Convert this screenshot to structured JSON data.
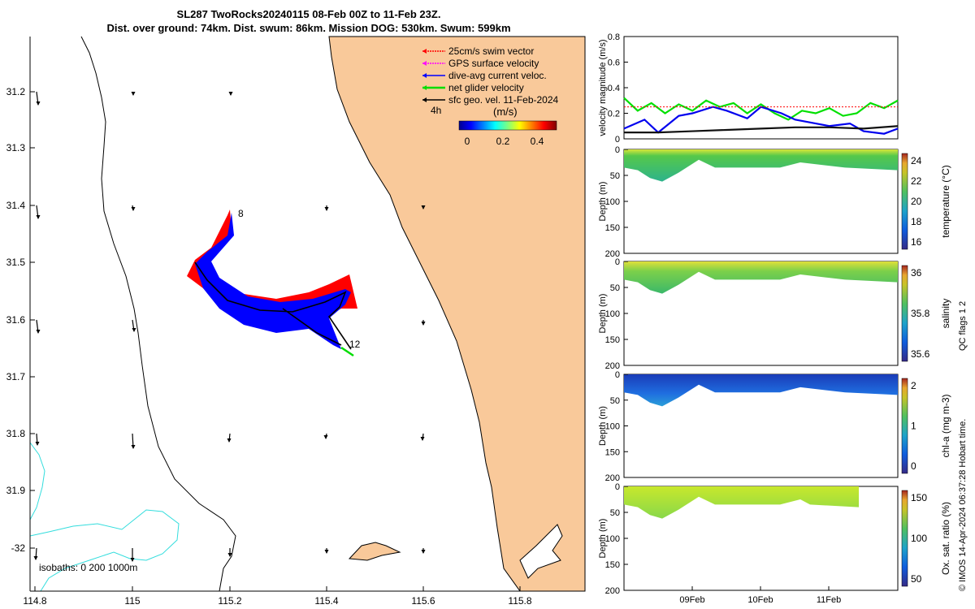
{
  "title_line1": "SL287 TwoRocks20240115 08-Feb 00Z to 11-Feb 23Z.",
  "title_line2": "Dist. over ground: 74km. Dist. swum: 86km. Mission DOG: 530km. Swum: 599km",
  "map": {
    "xticks": [
      "114.8",
      "115",
      "115.2",
      "115.4",
      "115.6",
      "115.8"
    ],
    "yticks": [
      "31.2",
      "31.3",
      "31.4",
      "31.5",
      "31.6",
      "31.7",
      "31.8",
      "31.9",
      "-32"
    ],
    "legend": [
      {
        "label": "25cm/s swim vector",
        "color": "#ff0000"
      },
      {
        "label": "GPS surface velocity",
        "color": "#ff00ff"
      },
      {
        "label": "dive-avg current veloc.",
        "color": "#0000ff"
      },
      {
        "label": "net glider velocity",
        "color": "#00dd00"
      },
      {
        "label": "sfc geo. vel. 11-Feb-2024",
        "color": "#000000"
      }
    ],
    "time_label": "4h",
    "colorbar_title": "(m/s)",
    "colorbar_ticks": [
      "0",
      "0.2",
      "0.4"
    ],
    "isobaths_label": "isobaths: 0   200  1000m",
    "start_label": "8",
    "end_label": "12",
    "land_color": "#f9c99a",
    "isobath_color": "#33dddd"
  },
  "chart_data": [
    {
      "type": "line",
      "ylabel": "velocity magnitude (m/s)",
      "ylim": [
        0,
        0.8
      ],
      "yticks": [
        "0",
        "0.2",
        "0.4",
        "0.6",
        "0.8"
      ],
      "xlim": [
        0,
        4
      ],
      "series": [
        {
          "color": "#00e000",
          "x": [
            0,
            0.2,
            0.4,
            0.6,
            0.8,
            1.0,
            1.2,
            1.4,
            1.6,
            1.8,
            2.0,
            2.2,
            2.4,
            2.6,
            2.8,
            3.0,
            3.2,
            3.4,
            3.6,
            3.8,
            4.0
          ],
          "values": [
            0.32,
            0.22,
            0.28,
            0.2,
            0.27,
            0.22,
            0.3,
            0.25,
            0.28,
            0.2,
            0.27,
            0.2,
            0.15,
            0.22,
            0.2,
            0.24,
            0.18,
            0.2,
            0.28,
            0.24,
            0.3
          ]
        },
        {
          "color": "#0000ee",
          "x": [
            0,
            0.3,
            0.5,
            0.8,
            1.0,
            1.3,
            1.5,
            1.8,
            2.0,
            2.3,
            2.5,
            2.8,
            3.0,
            3.3,
            3.5,
            3.8,
            4.0
          ],
          "values": [
            0.08,
            0.15,
            0.05,
            0.18,
            0.2,
            0.25,
            0.22,
            0.16,
            0.25,
            0.2,
            0.15,
            0.12,
            0.1,
            0.12,
            0.06,
            0.04,
            0.08
          ]
        },
        {
          "color": "#111111",
          "x": [
            0,
            0.5,
            1.0,
            1.5,
            2.0,
            2.5,
            3.0,
            3.5,
            4.0
          ],
          "values": [
            0.05,
            0.05,
            0.06,
            0.07,
            0.08,
            0.09,
            0.09,
            0.08,
            0.1
          ]
        },
        {
          "color": "#ff0000",
          "x": [
            0,
            4
          ],
          "values": [
            0.25,
            0.25
          ]
        }
      ]
    },
    {
      "type": "heatmap",
      "ylabel": "Depth (m)",
      "ylim": [
        0,
        200
      ],
      "yticks": [
        "0",
        "50",
        "100",
        "150",
        "200"
      ],
      "cbar_label": "temperature (°C)",
      "cbar_ticks": [
        "16",
        "18",
        "20",
        "22",
        "24"
      ]
    },
    {
      "type": "heatmap",
      "ylabel": "Depth (m)",
      "ylim": [
        0,
        200
      ],
      "yticks": [
        "0",
        "50",
        "100",
        "150",
        "200"
      ],
      "cbar_label": "salinity",
      "cbar_ticks": [
        "35.6",
        "35.8",
        "36"
      ]
    },
    {
      "type": "heatmap",
      "ylabel": "Depth (m)",
      "ylim": [
        0,
        200
      ],
      "yticks": [
        "0",
        "50",
        "100",
        "150",
        "200"
      ],
      "cbar_label": "chl-a (mg m-3)",
      "cbar_ticks": [
        "0",
        "1",
        "2"
      ]
    },
    {
      "type": "heatmap",
      "ylabel": "Depth (m)",
      "ylim": [
        0,
        200
      ],
      "yticks": [
        "0",
        "50",
        "100",
        "150",
        "200"
      ],
      "cbar_label": "Ox. sat. ratio (%)",
      "cbar_ticks": [
        "50",
        "100",
        "150"
      ],
      "xticks": [
        "09Feb",
        "10Feb",
        "11Feb"
      ]
    }
  ],
  "side_note": "QC flags 1  2",
  "footer": "© IMOS 14-Apr-2024 06:37:28 Hobart time."
}
